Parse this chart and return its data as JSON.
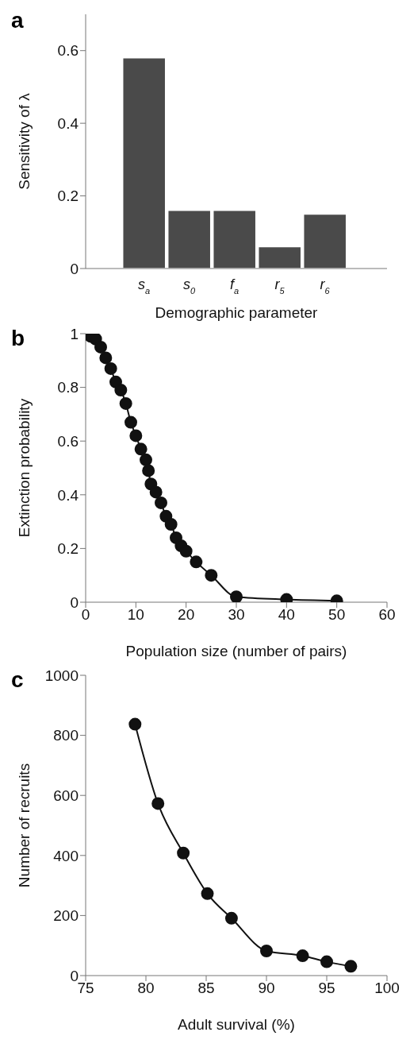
{
  "chart_data": [
    {
      "type": "bar",
      "title": "a",
      "xlabel": "Demographic parameter",
      "ylabel": "Sensitivity of λ",
      "categories": [
        "s$_{a}$",
        "s$_{0}$",
        "f$_{a}$",
        "r$_{5}$",
        "r$_{6}$"
      ],
      "values": [
        0.58,
        0.16,
        0.16,
        0.06,
        0.15
      ],
      "color": "#4a4a4a",
      "ylim": [
        0,
        0.7
      ],
      "yticks": [
        0,
        0.2,
        0.4,
        0.6
      ]
    },
    {
      "type": "line",
      "title": "b",
      "xlabel": "Population size (number of pairs)",
      "ylabel": "Extinction probability",
      "x": [
        1,
        2,
        3,
        4,
        5,
        6,
        7,
        8,
        9,
        10,
        11,
        12,
        12.5,
        13,
        14,
        15,
        16,
        17,
        18,
        19,
        20,
        22,
        25,
        30,
        40,
        50
      ],
      "values": [
        0.99,
        0.98,
        0.95,
        0.91,
        0.87,
        0.82,
        0.79,
        0.74,
        0.67,
        0.62,
        0.57,
        0.53,
        0.49,
        0.44,
        0.41,
        0.37,
        0.32,
        0.29,
        0.24,
        0.21,
        0.19,
        0.15,
        0.1,
        0.02,
        0.01,
        0.005
      ],
      "color": "#111111",
      "marker": "circle",
      "line_style": "solid",
      "xlim": [
        0,
        60
      ],
      "xticks": [
        0,
        10,
        20,
        30,
        40,
        50,
        60
      ],
      "ylim": [
        0,
        1
      ],
      "yticks": [
        0,
        0.2,
        0.4,
        0.6,
        0.8,
        1
      ]
    },
    {
      "type": "line",
      "title": "c",
      "xlabel": "Adult survival (%)",
      "ylabel": "Number of recruits",
      "x": [
        79.1,
        81,
        83.1,
        85.1,
        87.1,
        90,
        93,
        95,
        97
      ],
      "values": [
        837,
        573,
        408,
        273,
        191,
        82,
        66,
        46,
        31
      ],
      "color": "#111111",
      "marker": "circle",
      "line_style": "solid",
      "xlim": [
        75,
        100
      ],
      "xticks": [
        75,
        80,
        85,
        90,
        95,
        100
      ],
      "ylim": [
        0,
        1000
      ],
      "yticks": [
        0,
        200,
        400,
        600,
        800,
        1000
      ]
    }
  ]
}
